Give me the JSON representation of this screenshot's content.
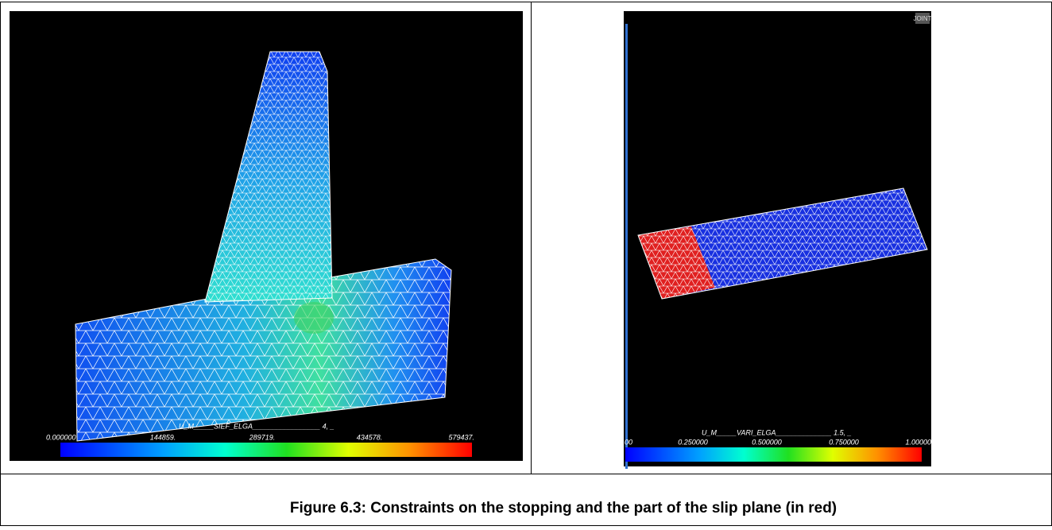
{
  "figure": {
    "left_panel": {
      "legend_title": "U_M_____SIEF_ELGA_________________ 4, _",
      "scale_labels": [
        "0.000000",
        "144859.",
        "289719.",
        "434578.",
        "579437."
      ]
    },
    "right_panel": {
      "badge": "JOINT",
      "legend_title": "U_M_____VARI_ELGA______________ 1.5, _",
      "scale_labels": [
        "00",
        "0.250000",
        "0.500000",
        "0.750000",
        "1.00000"
      ]
    },
    "caption": "Figure 6.3: Constraints on the stopping and the part of the slip plane (in red)"
  }
}
